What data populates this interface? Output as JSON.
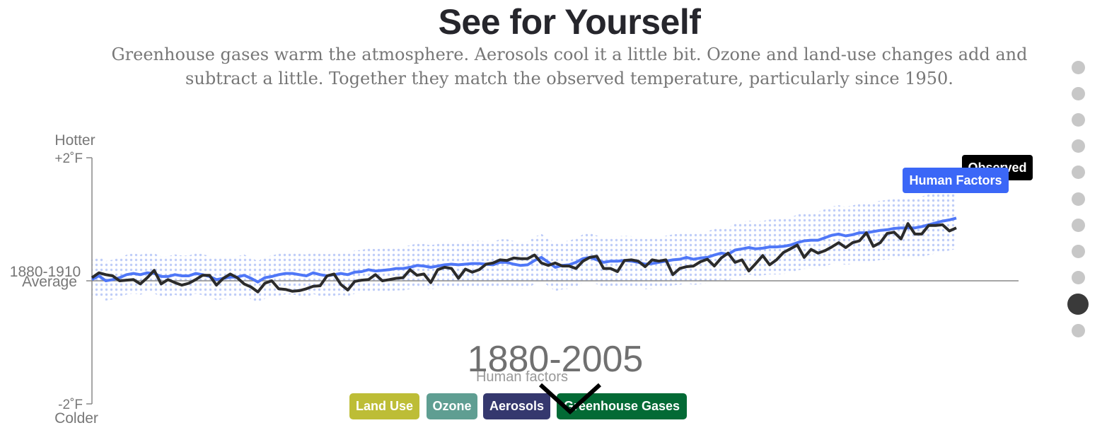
{
  "header": {
    "title": "See for Yourself",
    "subtitle": "Greenhouse gases warm the atmosphere. Aerosols cool it a little bit. Ozone and land-use changes add and subtract a little. Together they match the observed temperature, particularly since 1950."
  },
  "period": "1880-2005",
  "factor_label": "Human factors",
  "factor_buttons": [
    {
      "label": "Land Use",
      "color": "#bdbd36"
    },
    {
      "label": "Ozone",
      "color": "#5f9e92"
    },
    {
      "label": "Aerosols",
      "color": "#35386e"
    },
    {
      "label": "Greenhouse Gases",
      "color": "#036a35"
    }
  ],
  "nav": {
    "dot_count": 11,
    "active_index": 9
  },
  "colors": {
    "observed": "#2b2b2b",
    "human": "#4f77f7",
    "band": "#bfcdf8",
    "observed_tag": "#000000",
    "human_tag": "#3b67f7"
  },
  "chart_data": {
    "type": "line",
    "xlim": [
      1880,
      2014
    ],
    "ylim": [
      -2,
      2
    ],
    "x_range_shown": [
      1880,
      2005
    ],
    "ylabel_top": "Hotter",
    "ylabel_bottom": "Colder",
    "ytick_top": "+2˚F",
    "ytick_bottom": "-2˚F",
    "baseline_label_line1": "1880-1910",
    "baseline_label_line2": "Average",
    "grid": false,
    "series": [
      {
        "name": "Observed",
        "start_year": 1880,
        "values": [
          0.05,
          0.13,
          0.1,
          0.08,
          0.0,
          0.01,
          0.02,
          -0.05,
          0.05,
          0.17,
          -0.05,
          0.02,
          -0.03,
          -0.07,
          -0.04,
          0.02,
          0.09,
          0.09,
          -0.07,
          0.04,
          0.11,
          0.05,
          -0.05,
          -0.1,
          -0.18,
          -0.04,
          0.0,
          -0.13,
          -0.14,
          -0.17,
          -0.16,
          -0.13,
          -0.09,
          -0.08,
          0.08,
          0.11,
          -0.06,
          -0.15,
          -0.01,
          0.01,
          0.02,
          0.1,
          0.0,
          0.02,
          0.04,
          0.05,
          0.18,
          0.09,
          0.11,
          -0.03,
          0.18,
          0.22,
          0.2,
          0.04,
          0.19,
          0.14,
          0.18,
          0.27,
          0.29,
          0.34,
          0.33,
          0.37,
          0.36,
          0.36,
          0.42,
          0.29,
          0.25,
          0.29,
          0.24,
          0.24,
          0.2,
          0.32,
          0.38,
          0.4,
          0.2,
          0.2,
          0.15,
          0.33,
          0.34,
          0.32,
          0.23,
          0.34,
          0.32,
          0.34,
          0.1,
          0.2,
          0.23,
          0.24,
          0.31,
          0.35,
          0.24,
          0.37,
          0.45,
          0.3,
          0.34,
          0.16,
          0.28,
          0.41,
          0.26,
          0.34,
          0.46,
          0.52,
          0.58,
          0.38,
          0.51,
          0.45,
          0.49,
          0.55,
          0.62,
          0.54,
          0.62,
          0.65,
          0.78,
          0.56,
          0.62,
          0.77,
          0.79,
          0.68,
          0.93,
          0.76,
          0.76,
          0.9,
          0.9,
          0.91,
          0.81,
          0.86
        ],
        "line_label": "Observed"
      },
      {
        "name": "Human Factors",
        "start_year": 1880,
        "values": [
          0.02,
          0.08,
          0.0,
          0.02,
          0.05,
          0.1,
          0.12,
          0.1,
          0.13,
          0.12,
          0.07,
          0.07,
          0.1,
          0.08,
          0.08,
          0.12,
          0.1,
          0.07,
          0.02,
          0.04,
          0.06,
          0.06,
          0.09,
          0.04,
          -0.02,
          0.05,
          0.07,
          0.1,
          0.12,
          0.12,
          0.1,
          0.08,
          0.13,
          0.1,
          0.08,
          0.1,
          0.12,
          0.1,
          0.14,
          0.15,
          0.18,
          0.16,
          0.17,
          0.18,
          0.2,
          0.2,
          0.22,
          0.25,
          0.24,
          0.22,
          0.24,
          0.26,
          0.27,
          0.26,
          0.27,
          0.28,
          0.28,
          0.27,
          0.26,
          0.3,
          0.3,
          0.27,
          0.25,
          0.26,
          0.33,
          0.38,
          0.3,
          0.22,
          0.25,
          0.26,
          0.3,
          0.36,
          0.38,
          0.34,
          0.3,
          0.32,
          0.32,
          0.33,
          0.32,
          0.3,
          0.27,
          0.28,
          0.3,
          0.32,
          0.34,
          0.35,
          0.38,
          0.35,
          0.37,
          0.38,
          0.42,
          0.45,
          0.43,
          0.5,
          0.52,
          0.54,
          0.52,
          0.53,
          0.55,
          0.55,
          0.56,
          0.58,
          0.62,
          0.65,
          0.66,
          0.66,
          0.7,
          0.74,
          0.76,
          0.73,
          0.75,
          0.78,
          0.78,
          0.8,
          0.82,
          0.83,
          0.85,
          0.86,
          0.86,
          0.86,
          0.88,
          0.91,
          0.94,
          0.97,
          0.99,
          1.02
        ],
        "band_halfwidth": [
          0.32,
          0.33,
          0.34,
          0.35,
          0.36,
          0.38,
          0.4,
          0.42,
          0.45,
          0.48,
          0.5
        ],
        "line_label": "Human Factors"
      }
    ]
  }
}
